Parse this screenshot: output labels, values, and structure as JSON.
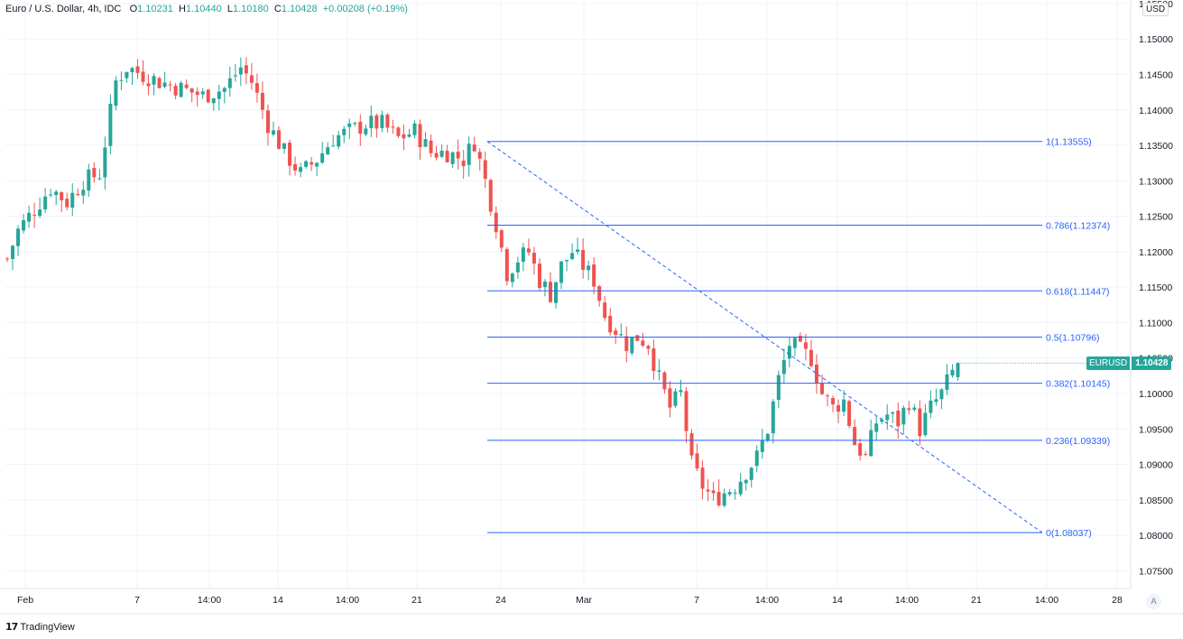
{
  "header": {
    "symbol": "Euro / U.S. Dollar, 4h, IDC",
    "open_label": "O",
    "open": "1.10231",
    "high_label": "H",
    "high": "1.10440",
    "low_label": "L",
    "low": "1.10180",
    "close_label": "C",
    "close": "1.10428",
    "change": "+0.00208 (+0.19%)"
  },
  "currency_button": "USD",
  "auto_button": "A",
  "brand": {
    "logo": "17",
    "name": "TradingView"
  },
  "last_price_tag": {
    "symbol": "EURUSD",
    "price": "1.10428"
  },
  "colors": {
    "up": "#26a69a",
    "down": "#ef5350",
    "fib": "#2962ff",
    "grid": "#f0f3fa",
    "axis_text": "#131722"
  },
  "chart_data": {
    "type": "candlestick",
    "title": "Euro / U.S. Dollar, 4h, IDC",
    "ylim": [
      1.0725,
      1.1555
    ],
    "y_ticks": [
      "1.15500",
      "1.15000",
      "1.14500",
      "1.14000",
      "1.13500",
      "1.13000",
      "1.12500",
      "1.12000",
      "1.11500",
      "1.11000",
      "1.10500",
      "1.10000",
      "1.09500",
      "1.09000",
      "1.08500",
      "1.08000",
      "1.07500"
    ],
    "x_ticks": [
      "Feb",
      "7",
      "14:00",
      "14",
      "14:00",
      "21",
      "24",
      "Mar",
      "7",
      "14:00",
      "14",
      "14:00",
      "21",
      "14:00",
      "28"
    ],
    "fibonacci": {
      "high": 1.13555,
      "low": 1.08037,
      "levels": [
        {
          "label": "1(1.13555)",
          "price": 1.13555
        },
        {
          "label": "0.786(1.12374)",
          "price": 1.12374
        },
        {
          "label": "0.618(1.11447)",
          "price": 1.11447
        },
        {
          "label": "0.5(1.10796)",
          "price": 1.10796
        },
        {
          "label": "0.382(1.10145)",
          "price": 1.10145
        },
        {
          "label": "0.236(1.09339)",
          "price": 1.09339
        },
        {
          "label": "0(1.08037)",
          "price": 1.08037
        }
      ]
    },
    "trend_line": {
      "from_price": 1.13555,
      "to_price": 1.08037
    },
    "last_price": 1.10428,
    "close_path": [
      [
        0,
        1.119
      ],
      [
        2,
        1.123
      ],
      [
        5,
        1.126
      ],
      [
        8,
        1.129
      ],
      [
        11,
        1.127
      ],
      [
        14,
        1.13
      ],
      [
        17,
        1.131
      ],
      [
        20,
        1.144
      ],
      [
        22,
        1.146
      ],
      [
        25,
        1.145
      ],
      [
        28,
        1.144
      ],
      [
        32,
        1.143
      ],
      [
        36,
        1.142
      ],
      [
        40,
        1.143
      ],
      [
        43,
        1.146
      ],
      [
        45,
        1.144
      ],
      [
        48,
        1.138
      ],
      [
        51,
        1.134
      ],
      [
        54,
        1.131
      ],
      [
        57,
        1.133
      ],
      [
        60,
        1.136
      ],
      [
        63,
        1.137
      ],
      [
        66,
        1.138
      ],
      [
        69,
        1.138
      ],
      [
        72,
        1.136
      ],
      [
        75,
        1.137
      ],
      [
        78,
        1.134
      ],
      [
        81,
        1.134
      ],
      [
        84,
        1.133
      ],
      [
        86,
        1.1355
      ],
      [
        88,
        1.13
      ],
      [
        90,
        1.124
      ],
      [
        92,
        1.117
      ],
      [
        94,
        1.119
      ],
      [
        96,
        1.12
      ],
      [
        98,
        1.116
      ],
      [
        100,
        1.114
      ],
      [
        102,
        1.118
      ],
      [
        104,
        1.12
      ],
      [
        106,
        1.118
      ],
      [
        108,
        1.116
      ],
      [
        110,
        1.111
      ],
      [
        112,
        1.109
      ],
      [
        114,
        1.107
      ],
      [
        116,
        1.108
      ],
      [
        118,
        1.107
      ],
      [
        120,
        1.102
      ],
      [
        122,
        1.098
      ],
      [
        124,
        1.1
      ],
      [
        126,
        1.09
      ],
      [
        128,
        1.087
      ],
      [
        130,
        1.085
      ],
      [
        132,
        1.086
      ],
      [
        134,
        1.087
      ],
      [
        136,
        1.089
      ],
      [
        138,
        1.091
      ],
      [
        140,
        1.095
      ],
      [
        142,
        1.102
      ],
      [
        144,
        1.107
      ],
      [
        146,
        1.106
      ],
      [
        148,
        1.105
      ],
      [
        150,
        1.1
      ],
      [
        152,
        1.098
      ],
      [
        154,
        1.099
      ],
      [
        156,
        1.093
      ],
      [
        158,
        1.091
      ],
      [
        160,
        1.096
      ],
      [
        162,
        1.097
      ],
      [
        164,
        1.096
      ],
      [
        166,
        1.099
      ],
      [
        168,
        1.095
      ],
      [
        170,
        1.098
      ],
      [
        172,
        1.1
      ],
      [
        174,
        1.103
      ],
      [
        175,
        1.1043
      ]
    ],
    "candle_count": 176,
    "date_span": {
      "first": "Feb",
      "last": "28"
    }
  }
}
